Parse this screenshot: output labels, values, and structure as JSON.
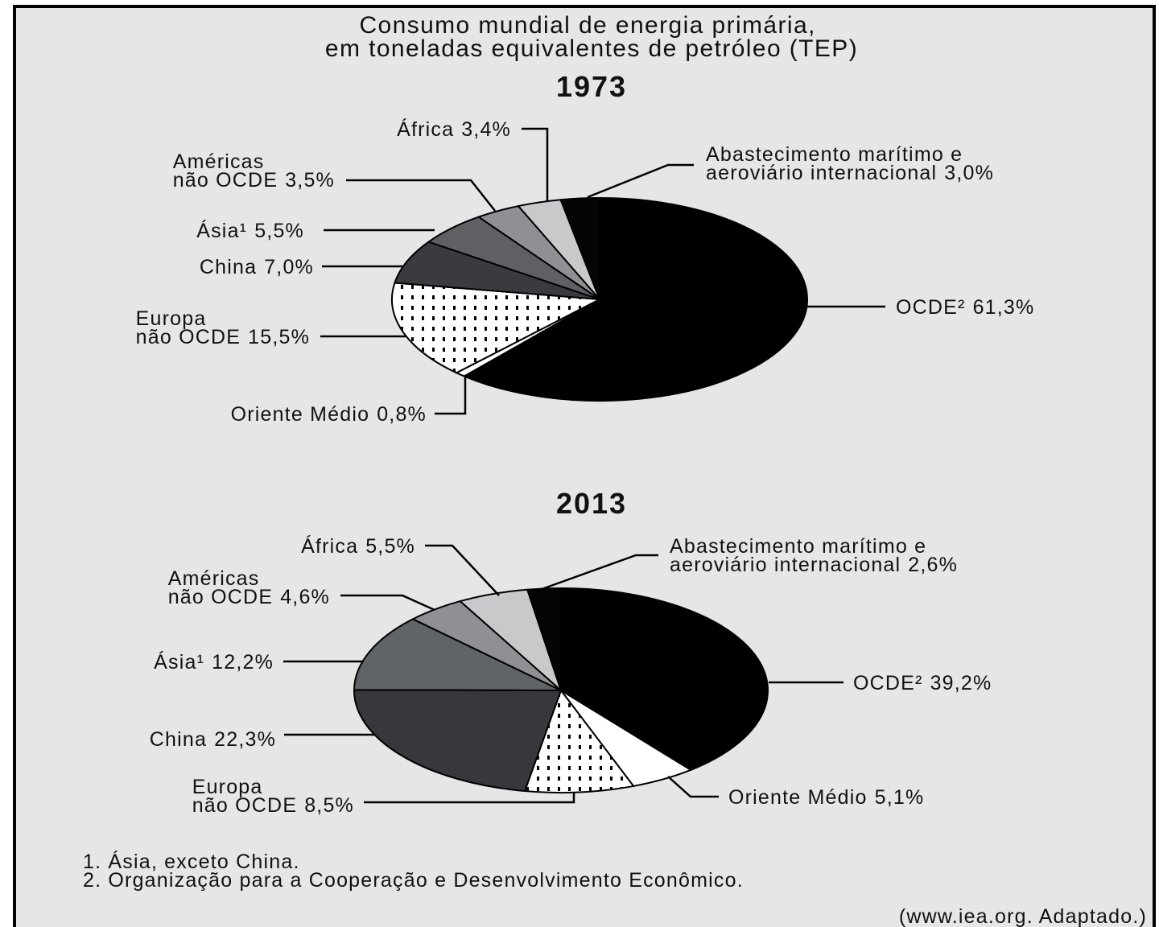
{
  "title": "Consumo mundial de energia primária, em toneladas equivalentes de petróleo (TEP)",
  "notes": [
    "1. Ásia, exceto China.",
    "2. Organização para a Cooperação e Desenvolvimento Econômico."
  ],
  "source": "(www.iea.org. Adaptado.)",
  "chart_data": [
    {
      "type": "pie",
      "title": "1973",
      "categories": [
        "OCDE²",
        "Oriente Médio",
        "Europa não OCDE",
        "China",
        "Ásia¹",
        "Américas não OCDE",
        "África",
        "Abastecimento marítimo e aeroviário internacional"
      ],
      "values": [
        61.3,
        0.8,
        15.5,
        7.0,
        5.5,
        3.5,
        3.4,
        3.0
      ],
      "value_labels": [
        "61,3%",
        "0,8%",
        "15,5%",
        "7,0%",
        "5,5%",
        "3,5%",
        "3,4%",
        "3,0%"
      ],
      "colors": [
        "#000000",
        "#ffffff",
        "dots",
        "#3a3b3e",
        "#5e6064",
        "#8e9094",
        "#c8c9cb",
        "#050505"
      ]
    },
    {
      "type": "pie",
      "title": "2013",
      "categories": [
        "OCDE²",
        "Oriente Médio",
        "Europa não OCDE",
        "China",
        "Ásia¹",
        "Américas não OCDE",
        "África",
        "Abastecimento marítimo e aeroviário internacional"
      ],
      "values": [
        39.2,
        5.1,
        8.5,
        22.3,
        12.2,
        4.6,
        5.5,
        2.6
      ],
      "value_labels": [
        "39,2%",
        "5,1%",
        "8,5%",
        "22,3%",
        "12,2%",
        "4,6%",
        "5,5%",
        "2,6%"
      ],
      "colors": [
        "#000000",
        "#ffffff",
        "dots",
        "#36383c",
        "#606368",
        "#8e9094",
        "#c8c9cb",
        "#050505"
      ]
    }
  ]
}
